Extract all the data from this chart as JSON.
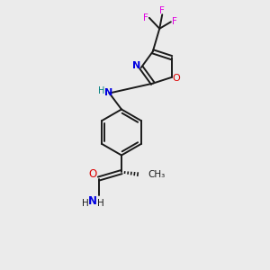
{
  "background_color": "#ebebeb",
  "bond_color": "#1a1a1a",
  "N_color": "#0000e0",
  "O_color": "#dd0000",
  "F_color": "#e000e0",
  "NH_color": "#008080",
  "figsize": [
    3.0,
    3.0
  ],
  "dpi": 100,
  "xlim": [
    0,
    10
  ],
  "ylim": [
    0,
    10
  ]
}
